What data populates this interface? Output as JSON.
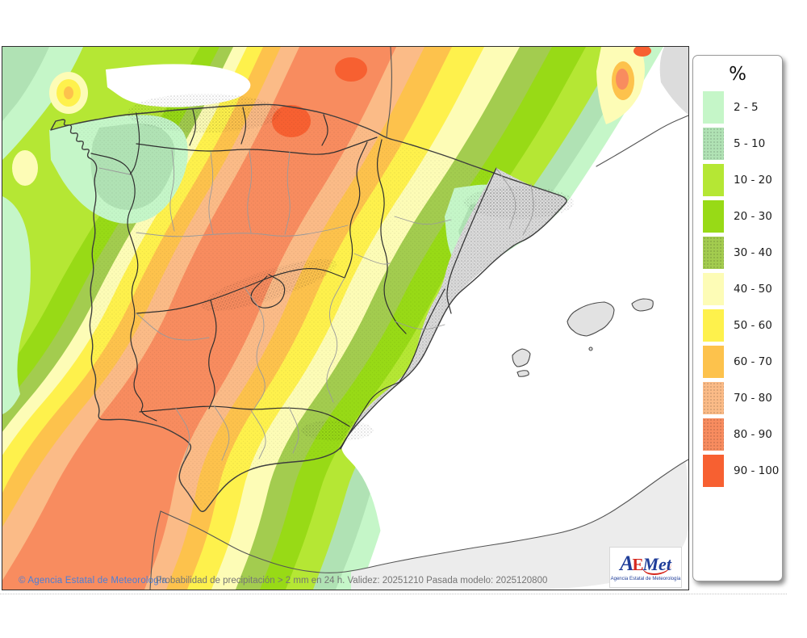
{
  "map": {
    "copyright": "© Agencia Estatal de Meteorología",
    "caption": "Probabilidad de precipitación > 2 mm en 24 h. Validez: 20251210 Pasada modelo: 2025120800"
  },
  "legend": {
    "title": "%",
    "items": [
      {
        "label": "2 - 5",
        "color": "#c5f6c8",
        "textured": false
      },
      {
        "label": "5 - 10",
        "color": "#b0e2b4",
        "textured": true
      },
      {
        "label": "10 - 20",
        "color": "#b5e734",
        "textured": false
      },
      {
        "label": "20 - 30",
        "color": "#98da16",
        "textured": false
      },
      {
        "label": "30 - 40",
        "color": "#a3cc4f",
        "textured": true
      },
      {
        "label": "40 - 50",
        "color": "#fdfcb6",
        "textured": false
      },
      {
        "label": "50 - 60",
        "color": "#fef14c",
        "textured": false
      },
      {
        "label": "60 - 70",
        "color": "#fdc24c",
        "textured": false
      },
      {
        "label": "70 - 80",
        "color": "#fbbb87",
        "textured": true
      },
      {
        "label": "80 - 90",
        "color": "#f88c5f",
        "textured": true
      },
      {
        "label": "90 - 100",
        "color": "#f76031",
        "textured": false
      }
    ]
  },
  "logo": {
    "text_a": "A",
    "text_e": "E",
    "text_met": "Met",
    "subtitle": "Agencia Estatal de Meteorología"
  },
  "colors": {
    "sea": "#ffffff",
    "no_data_land": "#dcdcdc",
    "africa_land": "#ececec",
    "copyright_blue": "#4a7fd9",
    "caption_grey": "#757575"
  }
}
